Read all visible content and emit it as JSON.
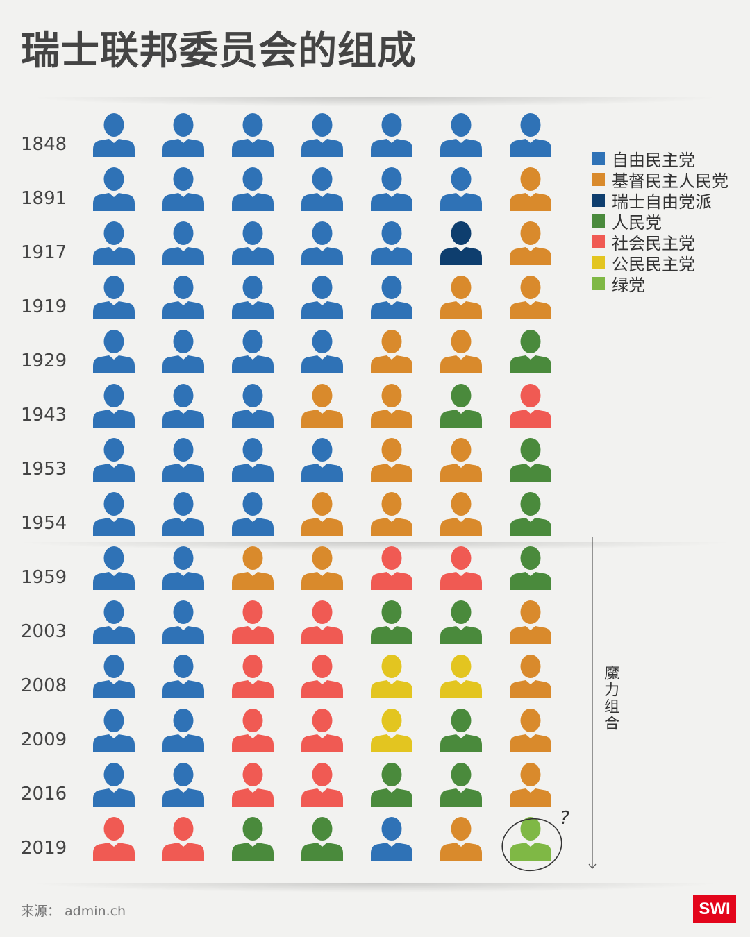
{
  "title": "瑞士联邦委员会的组成",
  "source": "来源： admin.ch",
  "logo": "SWI",
  "bracket_label": "魔力组合",
  "question_mark": "?",
  "colors": {
    "FDP": "#2f72b6",
    "CVP": "#d98a2c",
    "LPS": "#0e3e6e",
    "SVP": "#4a8a3c",
    "SP": "#f05a53",
    "BDP": "#e3c520",
    "GPS": "#7fb845"
  },
  "legend": [
    {
      "party": "FDP",
      "label": "自由民主党"
    },
    {
      "party": "CVP",
      "label": "基督民主人民党"
    },
    {
      "party": "LPS",
      "label": "瑞士自由党派"
    },
    {
      "party": "SVP",
      "label": "人民党"
    },
    {
      "party": "SP",
      "label": "社会民主党"
    },
    {
      "party": "BDP",
      "label": "公民民主党"
    },
    {
      "party": "GPS",
      "label": "绿党"
    }
  ],
  "chart_data": {
    "type": "table",
    "title": "瑞士联邦委员会的组成",
    "seats_per_row": 7,
    "rows": [
      {
        "year": "1848",
        "seats": [
          "FDP",
          "FDP",
          "FDP",
          "FDP",
          "FDP",
          "FDP",
          "FDP"
        ]
      },
      {
        "year": "1891",
        "seats": [
          "FDP",
          "FDP",
          "FDP",
          "FDP",
          "FDP",
          "FDP",
          "CVP"
        ]
      },
      {
        "year": "1917",
        "seats": [
          "FDP",
          "FDP",
          "FDP",
          "FDP",
          "FDP",
          "LPS",
          "CVP"
        ]
      },
      {
        "year": "1919",
        "seats": [
          "FDP",
          "FDP",
          "FDP",
          "FDP",
          "FDP",
          "CVP",
          "CVP"
        ]
      },
      {
        "year": "1929",
        "seats": [
          "FDP",
          "FDP",
          "FDP",
          "FDP",
          "CVP",
          "CVP",
          "SVP"
        ]
      },
      {
        "year": "1943",
        "seats": [
          "FDP",
          "FDP",
          "FDP",
          "CVP",
          "CVP",
          "SVP",
          "SP"
        ]
      },
      {
        "year": "1953",
        "seats": [
          "FDP",
          "FDP",
          "FDP",
          "FDP",
          "CVP",
          "CVP",
          "SVP"
        ]
      },
      {
        "year": "1954",
        "seats": [
          "FDP",
          "FDP",
          "FDP",
          "CVP",
          "CVP",
          "CVP",
          "SVP"
        ]
      },
      {
        "year": "1959",
        "seats": [
          "FDP",
          "FDP",
          "CVP",
          "CVP",
          "SP",
          "SP",
          "SVP"
        ]
      },
      {
        "year": "2003",
        "seats": [
          "FDP",
          "FDP",
          "SP",
          "SP",
          "SVP",
          "SVP",
          "CVP"
        ]
      },
      {
        "year": "2008",
        "seats": [
          "FDP",
          "FDP",
          "SP",
          "SP",
          "BDP",
          "BDP",
          "CVP"
        ]
      },
      {
        "year": "2009",
        "seats": [
          "FDP",
          "FDP",
          "SP",
          "SP",
          "BDP",
          "SVP",
          "CVP"
        ]
      },
      {
        "year": "2016",
        "seats": [
          "FDP",
          "FDP",
          "SP",
          "SP",
          "SVP",
          "SVP",
          "CVP"
        ]
      },
      {
        "year": "2019",
        "seats": [
          "SP",
          "SP",
          "SVP",
          "SVP",
          "FDP",
          "CVP",
          "GPS"
        ]
      }
    ],
    "magic_formula": {
      "label": "魔力组合",
      "from": "1959",
      "to": "2019"
    },
    "highlight": {
      "year": "2019",
      "seat": 7,
      "mark": "?"
    }
  }
}
